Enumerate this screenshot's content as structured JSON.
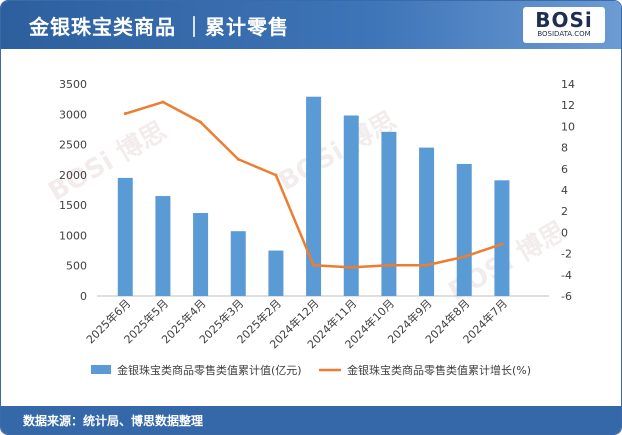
{
  "header": {
    "title": "金银珠宝类商品 ｜累计零售",
    "logo_text": "BOSi",
    "logo_sub": "BOSIDATA.COM"
  },
  "footer": {
    "source": "数据来源：统计局、博思数据整理"
  },
  "colors": {
    "bar": "#5b9bd5",
    "line": "#ed7d31",
    "header": "#3568a8"
  },
  "chart_data": {
    "type": "bar+line",
    "categories": [
      "2025年6月",
      "2025年5月",
      "2025年4月",
      "2025年3月",
      "2025年2月",
      "2024年12月",
      "2024年11月",
      "2024年10月",
      "2024年9月",
      "2024年8月",
      "2024年7月"
    ],
    "series": [
      {
        "name": "金银珠宝类商品零售类值累计值(亿元)",
        "type": "bar",
        "axis": "left",
        "values": [
          1950,
          1650,
          1370,
          1070,
          750,
          3290,
          2980,
          2710,
          2450,
          2180,
          1910
        ]
      },
      {
        "name": "金银珠宝类商品零售类值累计增长(%)",
        "type": "line",
        "axis": "right",
        "values": [
          11.2,
          12.3,
          10.4,
          6.9,
          5.4,
          -3.1,
          -3.3,
          -3.1,
          -3.1,
          -2.3,
          -1.1
        ]
      }
    ],
    "y_left": {
      "min": 0,
      "max": 3500,
      "ticks": [
        "0",
        "500",
        "1000",
        "1500",
        "2000",
        "2500",
        "3000",
        "3500"
      ]
    },
    "y_right": {
      "min": -6,
      "max": 14,
      "ticks": [
        "-6",
        "-4",
        "-2",
        "0",
        "2",
        "4",
        "6",
        "8",
        "10",
        "12",
        "14"
      ]
    },
    "legend_position": "bottom"
  }
}
